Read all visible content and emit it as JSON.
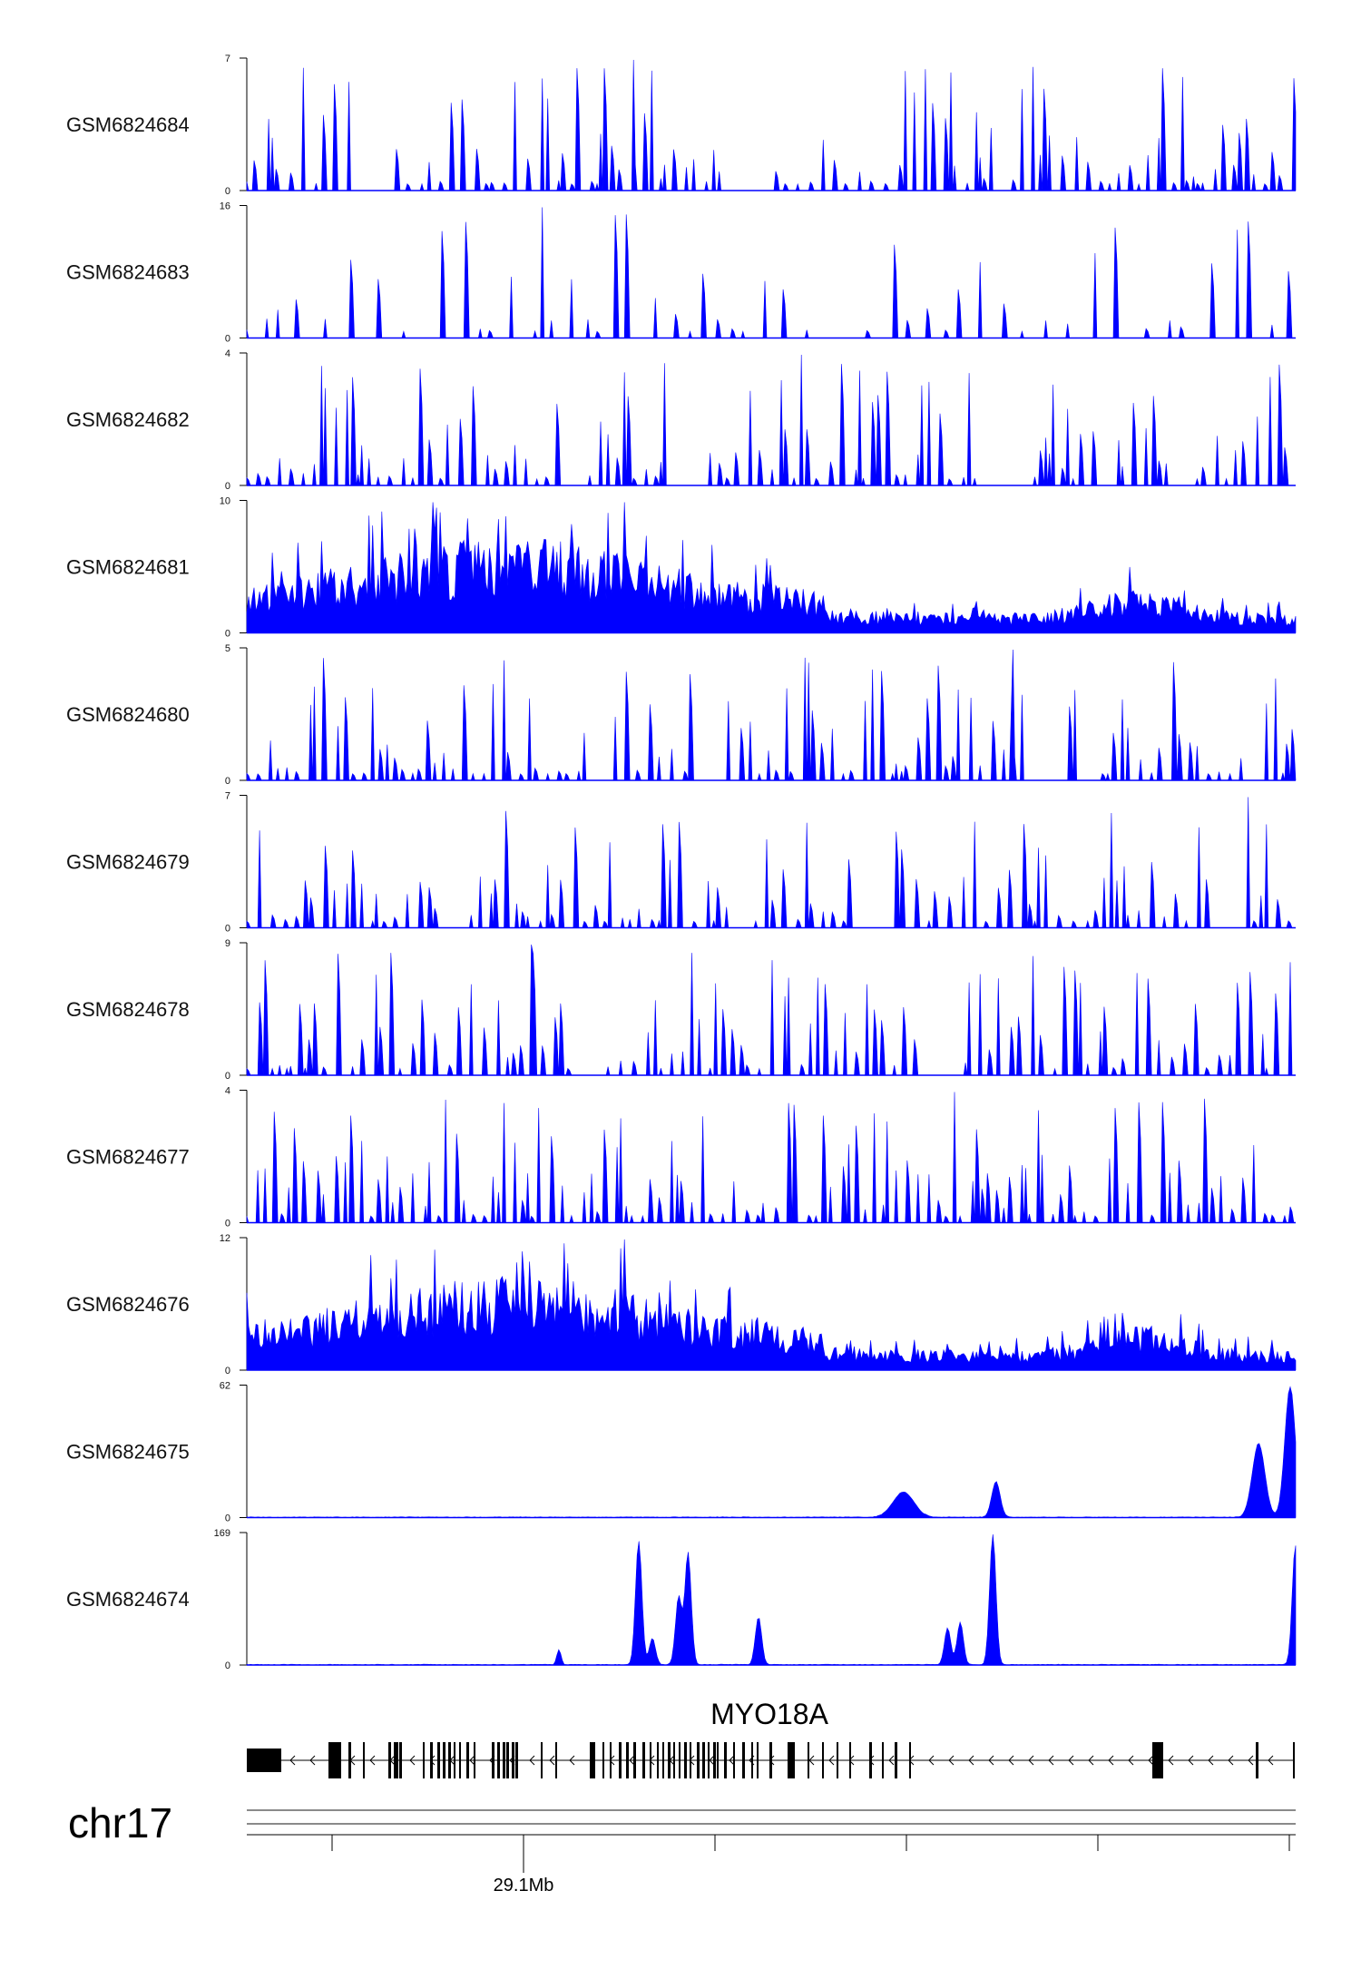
{
  "chart_data": {
    "type": "area",
    "title": "",
    "chromosome": "chr17",
    "gene": "MYO18A",
    "x_tick_label": "29.1Mb",
    "color": "#0000ff",
    "tracks": [
      {
        "name": "GSM6824684",
        "ymax": 7,
        "ymin": 0,
        "style": "spiky",
        "seed": 684
      },
      {
        "name": "GSM6824683",
        "ymax": 16,
        "ymin": 0,
        "style": "sparse",
        "seed": 683
      },
      {
        "name": "GSM6824682",
        "ymax": 4,
        "ymin": 0,
        "style": "spiky",
        "seed": 682
      },
      {
        "name": "GSM6824681",
        "ymax": 10,
        "ymin": 0,
        "style": "dense",
        "seed": 681
      },
      {
        "name": "GSM6824680",
        "ymax": 5,
        "ymin": 0,
        "style": "spiky",
        "seed": 680
      },
      {
        "name": "GSM6824679",
        "ymax": 7,
        "ymin": 0,
        "style": "spiky",
        "seed": 679
      },
      {
        "name": "GSM6824678",
        "ymax": 9,
        "ymin": 0,
        "style": "spiky",
        "seed": 678
      },
      {
        "name": "GSM6824677",
        "ymax": 4,
        "ymin": 0,
        "style": "spiky",
        "seed": 677
      },
      {
        "name": "GSM6824676",
        "ymax": 12,
        "ymin": 0,
        "style": "dense",
        "seed": 676
      },
      {
        "name": "GSM6824675",
        "ymax": 62,
        "ymin": 0,
        "style": "peaks",
        "seed": 675,
        "peaks": [
          {
            "pos": 0.625,
            "height": 12,
            "width": 0.01
          },
          {
            "pos": 0.713,
            "height": 17,
            "width": 0.004
          },
          {
            "pos": 0.963,
            "height": 35,
            "width": 0.006
          },
          {
            "pos": 0.993,
            "height": 62,
            "width": 0.005
          }
        ]
      },
      {
        "name": "GSM6824674",
        "ymax": 169,
        "ymin": 0,
        "style": "peaks",
        "seed": 674,
        "peaks": [
          {
            "pos": 0.297,
            "height": 20,
            "width": 0.002
          },
          {
            "pos": 0.373,
            "height": 160,
            "width": 0.003
          },
          {
            "pos": 0.386,
            "height": 34,
            "width": 0.003
          },
          {
            "pos": 0.411,
            "height": 88,
            "width": 0.003
          },
          {
            "pos": 0.42,
            "height": 145,
            "width": 0.003
          },
          {
            "pos": 0.487,
            "height": 62,
            "width": 0.003
          },
          {
            "pos": 0.667,
            "height": 48,
            "width": 0.003
          },
          {
            "pos": 0.679,
            "height": 55,
            "width": 0.003
          },
          {
            "pos": 0.71,
            "height": 169,
            "width": 0.003
          },
          {
            "pos": 0.998,
            "height": 155,
            "width": 0.003
          }
        ]
      }
    ]
  }
}
